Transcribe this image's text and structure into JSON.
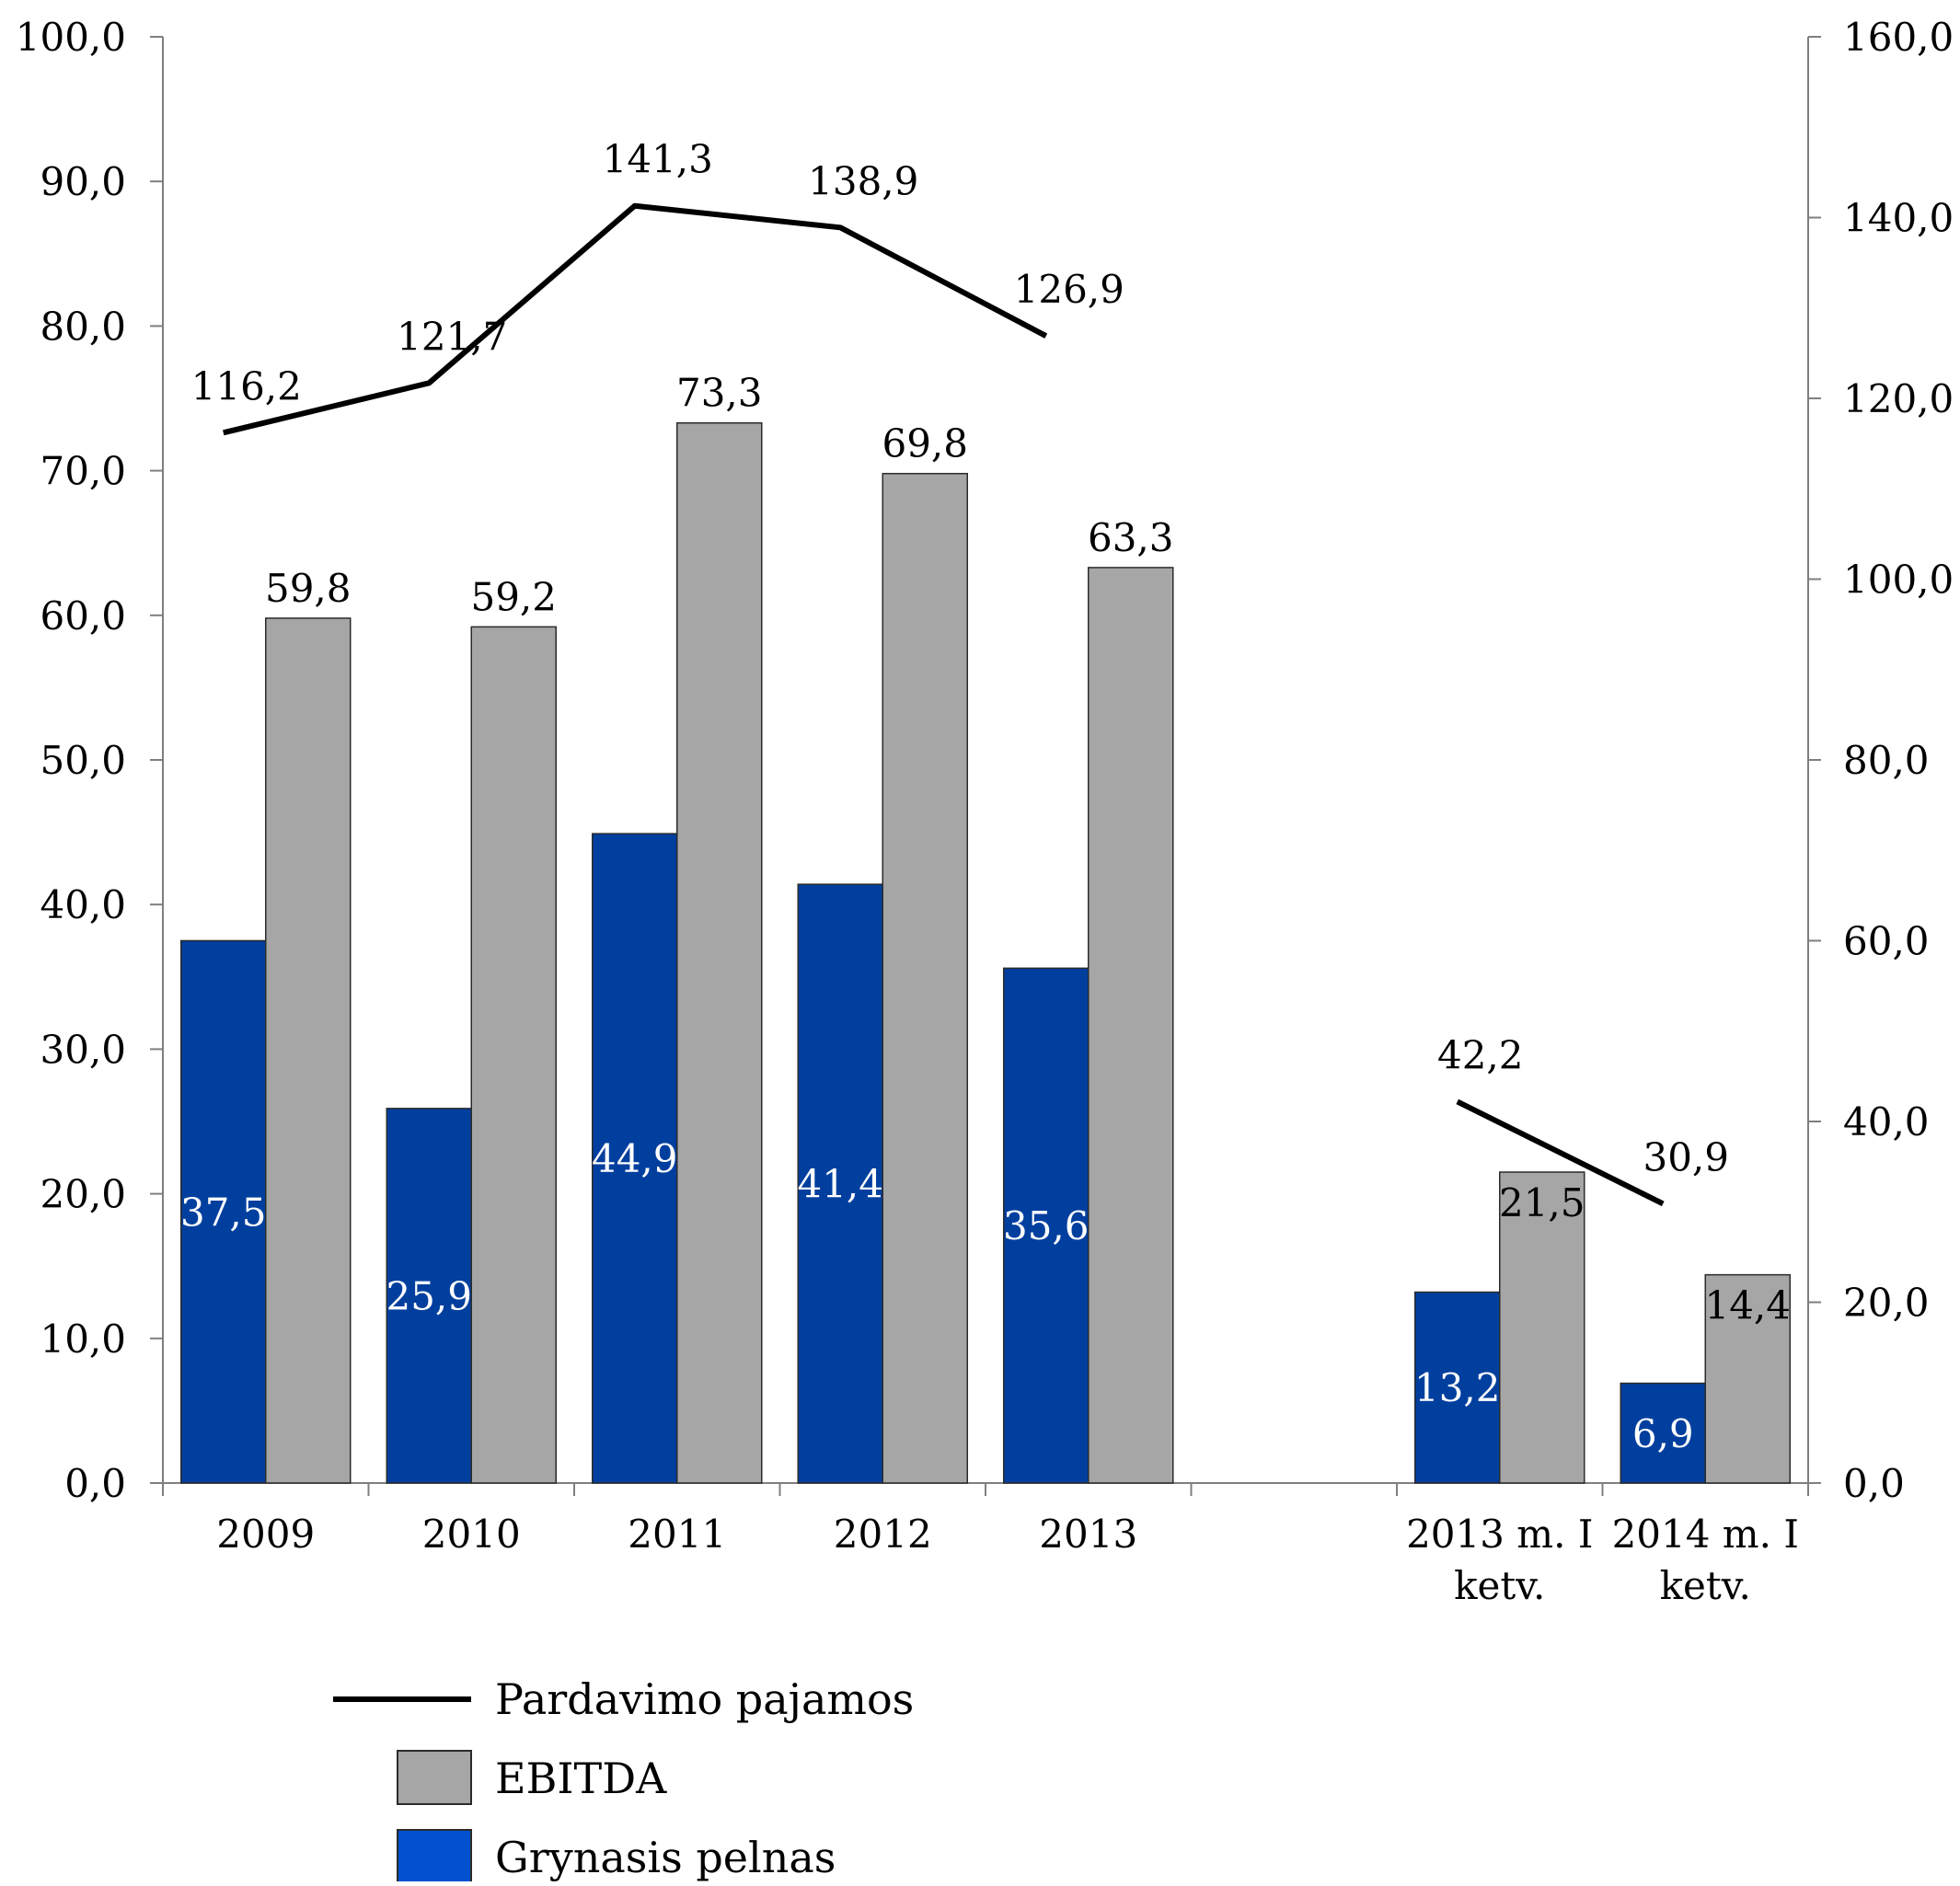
{
  "chart_data": {
    "type": "bar",
    "categories": [
      [
        "2009"
      ],
      [
        "2010"
      ],
      [
        "2011"
      ],
      [
        "2012"
      ],
      [
        "2013"
      ],
      [],
      [
        "2013 m. I",
        "ketv."
      ],
      [
        "2014 m. I",
        "ketv."
      ]
    ],
    "y_left": {
      "ylim": [
        0,
        100
      ],
      "ticks": [
        "0,0",
        "10,0",
        "20,0",
        "30,0",
        "40,0",
        "50,0",
        "60,0",
        "70,0",
        "80,0",
        "90,0",
        "100,0"
      ],
      "tick_values": [
        0,
        10,
        20,
        30,
        40,
        50,
        60,
        70,
        80,
        90,
        100
      ]
    },
    "y_right": {
      "ylim": [
        0,
        160
      ],
      "ticks": [
        "0,0",
        "20,0",
        "40,0",
        "60,0",
        "80,0",
        "100,0",
        "120,0",
        "140,0",
        "160,0"
      ],
      "tick_values": [
        0,
        20,
        40,
        60,
        80,
        100,
        120,
        140,
        160
      ]
    },
    "series": [
      {
        "name": "Grynasis pelnas",
        "kind": "bar",
        "axis": "left",
        "color": "#003f9e",
        "values": [
          37.5,
          25.9,
          44.9,
          41.4,
          35.6,
          null,
          13.2,
          6.9
        ],
        "labels": [
          "37,5",
          "25,9",
          "44,9",
          "41,4",
          "35,6",
          "",
          "13,2",
          "6,9"
        ],
        "label_color": "#ffffff"
      },
      {
        "name": "EBITDA",
        "kind": "bar",
        "axis": "left",
        "color": "#a6a6a6",
        "values": [
          59.8,
          59.2,
          73.3,
          69.8,
          63.3,
          null,
          21.5,
          14.4
        ],
        "labels": [
          "59,8",
          "59,2",
          "73,3",
          "69,8",
          "63,3",
          "",
          "21,5",
          "14,4"
        ],
        "label_color": "#000000"
      },
      {
        "name": "Pardavimo pajamos",
        "kind": "line",
        "axis": "right",
        "color": "#000000",
        "values": [
          116.2,
          121.7,
          141.3,
          138.9,
          126.9,
          null,
          42.2,
          30.9
        ],
        "labels": [
          "116,2",
          "121,7",
          "141,3",
          "138,9",
          "126,9",
          "",
          "42,2",
          "30,9"
        ]
      }
    ],
    "legend": {
      "placement": "bottom-left",
      "items": [
        {
          "name": "Pardavimo pajamos",
          "swatch": "line",
          "color": "#000000"
        },
        {
          "name": "EBITDA",
          "swatch": "box",
          "color": "#a6a6a6"
        },
        {
          "name": "Grynasis pelnas",
          "swatch": "box",
          "color": "#0050d0"
        }
      ]
    },
    "grid": false
  }
}
